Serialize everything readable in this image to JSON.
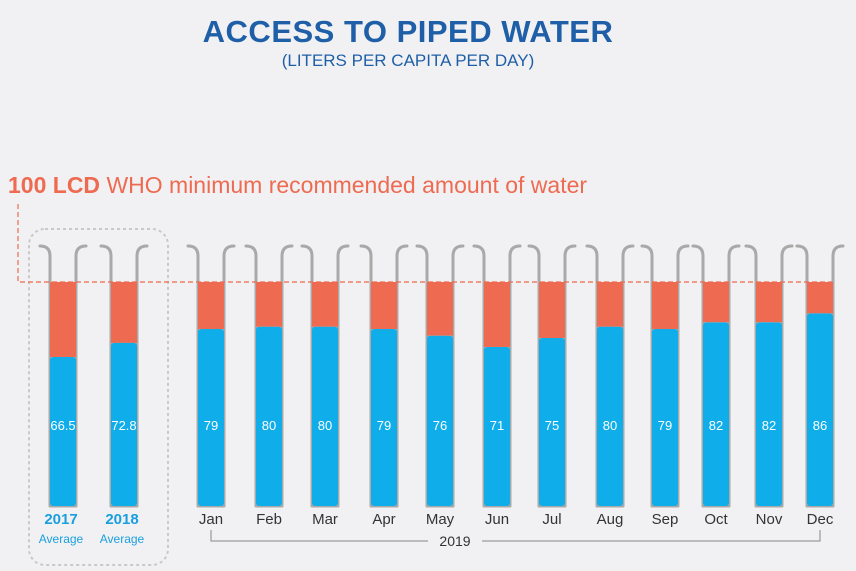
{
  "title": "ACCESS TO PIPED WATER",
  "subtitle": "(LITERS PER CAPITA PER DAY)",
  "reference": {
    "value_label": "100 LCD",
    "text": "WHO minimum recommended amount of water"
  },
  "year_group_label": "2019",
  "colors": {
    "title": "#1f5fa8",
    "fill": "#0faeea",
    "remainder": "#ee6a50",
    "reference": "#ee6a50",
    "tube_outline": "#a9a9a9",
    "bar_label": "#ffffff",
    "year_label": "#1a9fde"
  },
  "chart_data": {
    "type": "bar",
    "title": "ACCESS TO PIPED WATER",
    "subtitle": "(LITERS PER CAPITA PER DAY)",
    "ylim": [
      0,
      100
    ],
    "reference_line": {
      "value": 100,
      "label": "100 LCD WHO minimum recommended amount of water"
    },
    "annual_averages": [
      {
        "year": "2017",
        "sub": "Average",
        "value": 66.5
      },
      {
        "year": "2018",
        "sub": "Average",
        "value": 72.8
      }
    ],
    "categories": [
      "Jan",
      "Feb",
      "Mar",
      "Apr",
      "May",
      "Jun",
      "Jul",
      "Aug",
      "Sep",
      "Oct",
      "Nov",
      "Dec"
    ],
    "values": [
      79,
      80,
      80,
      79,
      76,
      71,
      75,
      80,
      79,
      82,
      82,
      86
    ],
    "value_labels": [
      "79",
      "80",
      "80",
      "79",
      "76",
      "71",
      "75",
      "80",
      "79",
      "82",
      "82",
      "86"
    ],
    "group_label": "2019",
    "grid": false
  }
}
